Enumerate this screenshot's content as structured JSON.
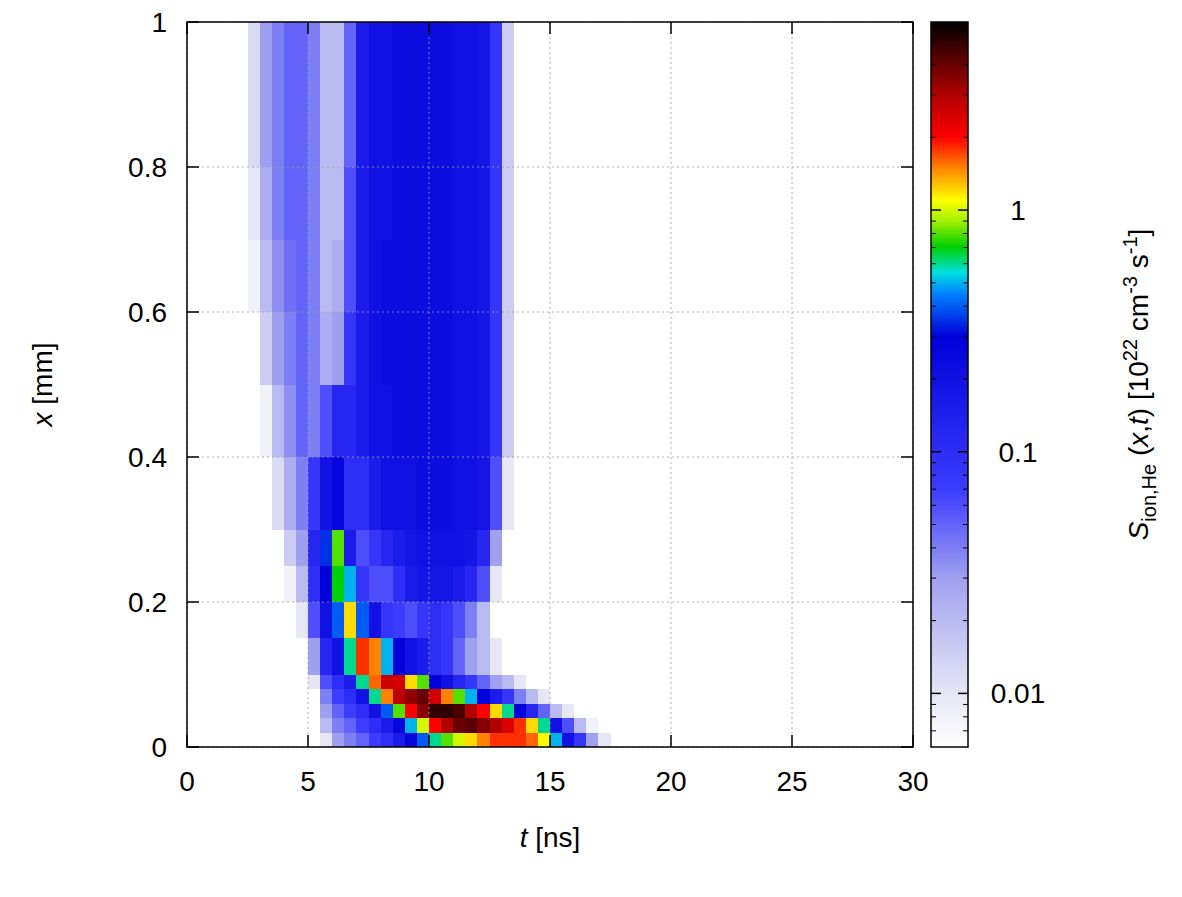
{
  "chart_data": {
    "type": "heatmap",
    "xlabel": [
      "t",
      " [ns]"
    ],
    "ylabel": [
      "x",
      " [mm]"
    ],
    "xlim": [
      0,
      30
    ],
    "xticks": [
      0,
      5,
      10,
      15,
      20,
      25,
      30
    ],
    "ylim": [
      0,
      1
    ],
    "yticks": [
      0,
      0.2,
      0.4,
      0.6,
      0.8,
      1
    ],
    "grid": true,
    "t_edges": [
      0,
      2.5,
      3,
      3.5,
      4,
      4.5,
      5,
      5.5,
      6,
      6.5,
      7,
      7.5,
      8,
      8.5,
      9,
      9.5,
      10,
      10.5,
      11,
      11.5,
      12,
      12.5,
      13,
      13.5,
      14,
      14.5,
      15,
      15.5,
      16,
      16.5,
      17,
      17.5,
      30
    ],
    "x_edges": [
      0,
      0.02,
      0.04,
      0.06,
      0.08,
      0.1,
      0.15,
      0.2,
      0.25,
      0.3,
      0.4,
      0.5,
      0.6,
      0.7,
      0.8,
      0.9,
      1
    ],
    "values": [
      [
        null,
        null,
        null,
        null,
        null,
        null,
        null,
        null,
        null,
        null,
        null,
        null,
        null,
        null,
        null,
        null
      ],
      [
        null,
        null,
        null,
        null,
        null,
        null,
        null,
        null,
        null,
        null,
        null,
        0.006,
        0.008,
        0.01,
        0.012,
        0.012
      ],
      [
        null,
        null,
        null,
        null,
        null,
        null,
        null,
        null,
        null,
        null,
        0.008,
        0.015,
        0.02,
        0.025,
        0.03,
        0.03
      ],
      [
        null,
        null,
        null,
        null,
        null,
        null,
        null,
        null,
        0.006,
        0.012,
        0.02,
        0.03,
        0.035,
        0.04,
        0.04,
        0.04
      ],
      [
        null,
        null,
        null,
        null,
        null,
        null,
        null,
        0.008,
        0.015,
        0.025,
        0.035,
        0.04,
        0.045,
        0.05,
        0.05,
        0.05
      ],
      [
        null,
        null,
        null,
        null,
        null,
        0.006,
        0.01,
        0.02,
        0.03,
        0.04,
        0.05,
        0.05,
        0.05,
        0.05,
        0.05,
        0.05
      ],
      [
        null,
        null,
        0.005,
        0.006,
        0.01,
        0.03,
        0.06,
        0.1,
        0.12,
        0.08,
        0.04,
        0.04,
        0.04,
        0.04,
        0.04,
        0.04
      ],
      [
        0.01,
        0.02,
        0.03,
        0.04,
        0.06,
        0.12,
        0.2,
        0.3,
        0.35,
        0.2,
        0.06,
        0.025,
        0.02,
        0.02,
        0.02,
        0.02
      ],
      [
        0.03,
        0.04,
        0.05,
        0.07,
        0.1,
        0.2,
        0.4,
        0.7,
        0.8,
        0.25,
        0.12,
        0.03,
        0.025,
        0.02,
        0.02,
        0.02
      ],
      [
        0.04,
        0.05,
        0.07,
        0.1,
        0.15,
        0.6,
        1.2,
        0.5,
        0.15,
        0.1,
        0.12,
        0.08,
        0.06,
        0.06,
        0.05,
        0.05
      ],
      [
        0.05,
        0.07,
        0.1,
        0.2,
        0.6,
        1.8,
        0.4,
        0.08,
        0.06,
        0.1,
        0.15,
        0.15,
        0.15,
        0.15,
        0.15,
        0.15
      ],
      [
        0.07,
        0.1,
        0.2,
        0.6,
        1.6,
        1.5,
        0.2,
        0.06,
        0.08,
        0.15,
        0.2,
        0.2,
        0.2,
        0.2,
        0.2,
        0.2
      ],
      [
        0.1,
        0.15,
        0.4,
        1.5,
        2.6,
        0.5,
        0.08,
        0.06,
        0.12,
        0.2,
        0.2,
        0.22,
        0.22,
        0.2,
        0.2,
        0.2
      ],
      [
        0.15,
        0.25,
        0.8,
        2.8,
        2.5,
        0.3,
        0.07,
        0.1,
        0.15,
        0.2,
        0.22,
        0.22,
        0.22,
        0.22,
        0.22,
        0.22
      ],
      [
        0.25,
        0.5,
        2,
        3.4,
        1.2,
        0.2,
        0.06,
        0.15,
        0.18,
        0.2,
        0.22,
        0.22,
        0.22,
        0.22,
        0.22,
        0.22
      ],
      [
        0.4,
        1,
        3.5,
        4,
        0.8,
        0.15,
        0.08,
        0.18,
        0.2,
        0.22,
        0.22,
        0.22,
        0.22,
        0.22,
        0.22,
        0.22
      ],
      [
        0.6,
        2,
        5,
        2.5,
        0.3,
        0.1,
        0.1,
        0.18,
        0.2,
        0.22,
        0.22,
        0.22,
        0.22,
        0.22,
        0.22,
        0.22
      ],
      [
        0.8,
        3,
        5,
        1.5,
        0.2,
        0.08,
        0.08,
        0.18,
        0.2,
        0.22,
        0.22,
        0.22,
        0.22,
        0.22,
        0.22,
        0.22
      ],
      [
        1,
        4,
        4.5,
        0.8,
        0.12,
        0.05,
        0.06,
        0.15,
        0.2,
        0.2,
        0.2,
        0.2,
        0.2,
        0.2,
        0.2,
        0.2
      ],
      [
        1.2,
        4.2,
        3,
        0.5,
        0.08,
        0.03,
        0.04,
        0.12,
        0.18,
        0.2,
        0.2,
        0.2,
        0.2,
        0.2,
        0.2,
        0.2
      ],
      [
        1.5,
        3.6,
        2,
        0.3,
        0.05,
        0.02,
        0.02,
        0.06,
        0.12,
        0.18,
        0.18,
        0.18,
        0.18,
        0.18,
        0.18,
        0.18
      ],
      [
        1.8,
        3,
        1.2,
        0.15,
        0.03,
        0.01,
        null,
        0.01,
        0.03,
        0.06,
        0.08,
        0.08,
        0.08,
        0.08,
        0.08,
        0.08
      ],
      [
        1.8,
        2.4,
        0.6,
        0.08,
        0.02,
        0.006,
        null,
        null,
        null,
        0.01,
        0.015,
        0.015,
        0.015,
        0.015,
        0.015,
        0.015
      ],
      [
        1.8,
        1.8,
        0.3,
        0.04,
        0.01,
        null,
        null,
        null,
        null,
        null,
        null,
        null,
        null,
        null,
        null,
        null
      ],
      [
        1.6,
        1.2,
        0.12,
        0.02,
        null,
        null,
        null,
        null,
        null,
        null,
        null,
        null,
        null,
        null,
        null,
        null
      ],
      [
        1.1,
        0.6,
        0.05,
        0.01,
        null,
        null,
        null,
        null,
        null,
        null,
        null,
        null,
        null,
        null,
        null,
        null
      ],
      [
        0.5,
        0.2,
        0.02,
        null,
        null,
        null,
        null,
        null,
        null,
        null,
        null,
        null,
        null,
        null,
        null,
        null
      ],
      [
        0.2,
        0.06,
        0.01,
        null,
        null,
        null,
        null,
        null,
        null,
        null,
        null,
        null,
        null,
        null,
        null,
        null
      ],
      [
        0.08,
        0.02,
        null,
        null,
        null,
        null,
        null,
        null,
        null,
        null,
        null,
        null,
        null,
        null,
        null,
        null
      ],
      [
        0.03,
        0.008,
        null,
        null,
        null,
        null,
        null,
        null,
        null,
        null,
        null,
        null,
        null,
        null,
        null,
        null
      ],
      [
        0.01,
        null,
        null,
        null,
        null,
        null,
        null,
        null,
        null,
        null,
        null,
        null,
        null,
        null,
        null,
        null
      ],
      [
        null,
        null,
        null,
        null,
        null,
        null,
        null,
        null,
        null,
        null,
        null,
        null,
        null,
        null,
        null,
        null
      ]
    ],
    "colorbar_label": [
      "S",
      "ion,He",
      " (",
      "x",
      ",",
      "t",
      ") [10",
      "22",
      " cm",
      "-3",
      " s",
      "-1",
      "]"
    ],
    "colorbar_range": [
      0.006,
      6
    ],
    "colorbar_ticks": [
      0.01,
      0.1,
      1
    ],
    "colorbar_minor_ticks": [
      0.007,
      0.008,
      0.009,
      0.02,
      0.03,
      0.04,
      0.05,
      0.06,
      0.07,
      0.08,
      0.09,
      0.2,
      0.3,
      0.4,
      0.5,
      0.6,
      0.7,
      0.8,
      0.9,
      2,
      3,
      4,
      5
    ],
    "colorbar_log": true
  }
}
